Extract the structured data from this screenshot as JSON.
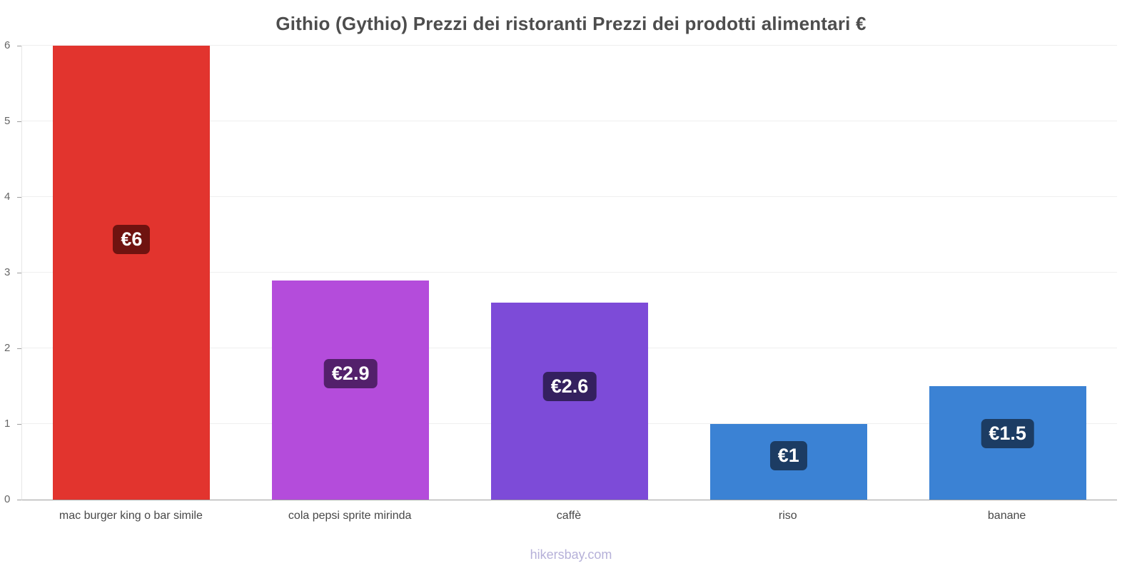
{
  "footer": "hikersbay.com",
  "chart_data": {
    "type": "bar",
    "title": "Githio (Gythio) Prezzi dei ristoranti Prezzi dei prodotti alimentari €",
    "categories": [
      "mac burger king o bar simile",
      "cola pepsi sprite mirinda",
      "caffè",
      "riso",
      "banane"
    ],
    "values": [
      6,
      2.9,
      2.6,
      1,
      1.5
    ],
    "data_labels": [
      "€6",
      "€2.9",
      "€2.6",
      "€1",
      "€1.5"
    ],
    "bar_colors": [
      "#e2342e",
      "#b44cdb",
      "#7d4bd8",
      "#3b82d4",
      "#3b82d4"
    ],
    "label_bg_colors": [
      "#6f1310",
      "#53206b",
      "#34205f",
      "#1c3c63",
      "#1c3c63"
    ],
    "currency": "€",
    "xlabel": "",
    "ylabel": "",
    "ylim": [
      0,
      6
    ],
    "yticks": [
      0,
      1,
      2,
      3,
      4,
      5,
      6
    ],
    "grid": true,
    "legend": "none"
  }
}
